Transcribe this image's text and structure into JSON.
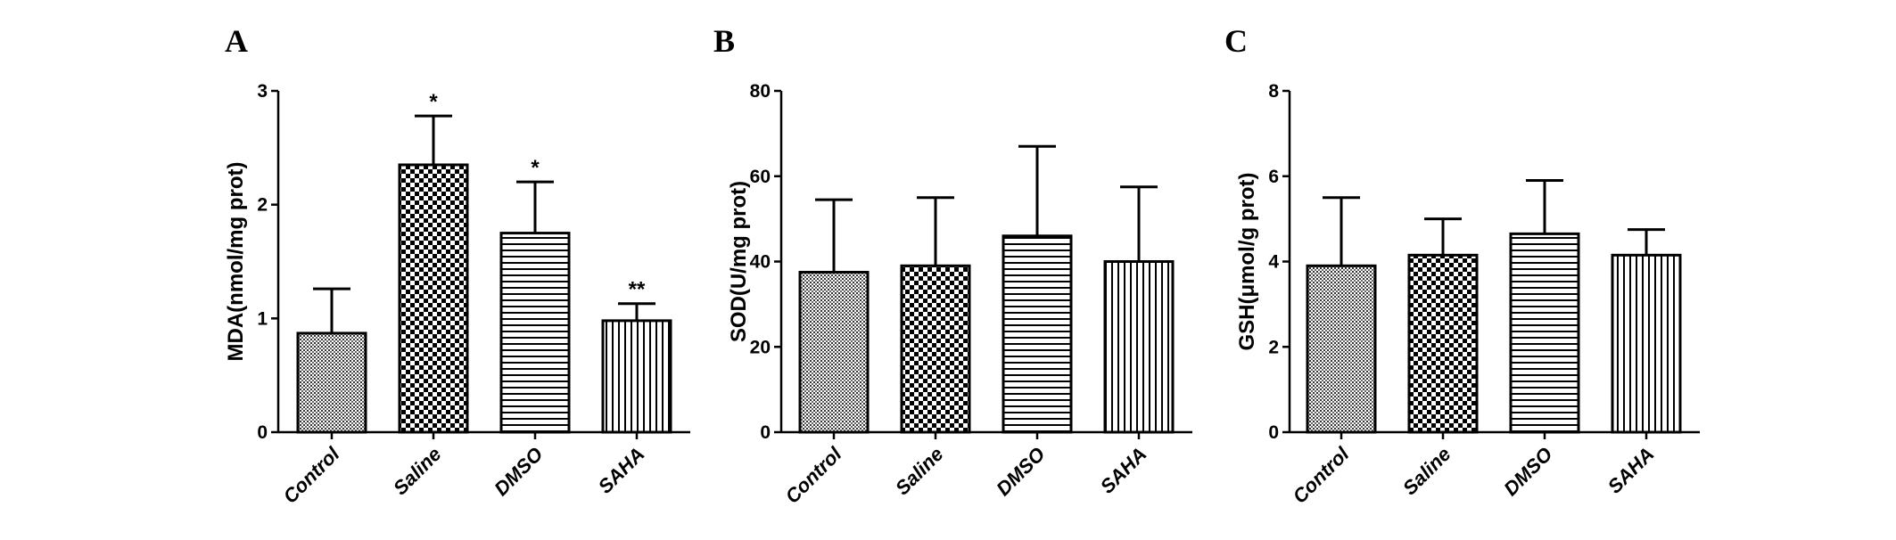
{
  "chart_data": [
    {
      "panel": "A",
      "type": "bar",
      "ylabel": "MDA(nmol/mg prot)",
      "ylim": [
        0,
        3
      ],
      "yticks": [
        0,
        1,
        2,
        3
      ],
      "categories": [
        "Control",
        "Saline",
        "DMSO",
        "SAHA"
      ],
      "values": [
        0.87,
        2.35,
        1.75,
        0.98
      ],
      "error": [
        0.39,
        0.43,
        0.45,
        0.15
      ],
      "significance": [
        "",
        "*",
        "*",
        "**"
      ],
      "patterns": [
        "dots",
        "checker",
        "hlines",
        "vlines"
      ],
      "grid": false
    },
    {
      "panel": "B",
      "type": "bar",
      "ylabel": "SOD(U/mg prot)",
      "ylim": [
        0,
        80
      ],
      "yticks": [
        0,
        20,
        40,
        60,
        80
      ],
      "categories": [
        "Control",
        "Saline",
        "DMSO",
        "SAHA"
      ],
      "values": [
        37.5,
        39,
        46,
        40
      ],
      "error": [
        17,
        16,
        21,
        17.5
      ],
      "significance": [
        "",
        "",
        "",
        ""
      ],
      "patterns": [
        "dots",
        "checker",
        "hlines",
        "vlines"
      ],
      "grid": false
    },
    {
      "panel": "C",
      "type": "bar",
      "ylabel": "GSH(μmol/g prot)",
      "ylim": [
        0,
        8
      ],
      "yticks": [
        0,
        2,
        4,
        6,
        8
      ],
      "categories": [
        "Control",
        "Saline",
        "DMSO",
        "SAHA"
      ],
      "values": [
        3.9,
        4.15,
        4.65,
        4.15
      ],
      "error": [
        1.6,
        0.85,
        1.25,
        0.6
      ],
      "significance": [
        "",
        "",
        "",
        ""
      ],
      "patterns": [
        "dots",
        "checker",
        "hlines",
        "vlines"
      ],
      "grid": false
    }
  ]
}
